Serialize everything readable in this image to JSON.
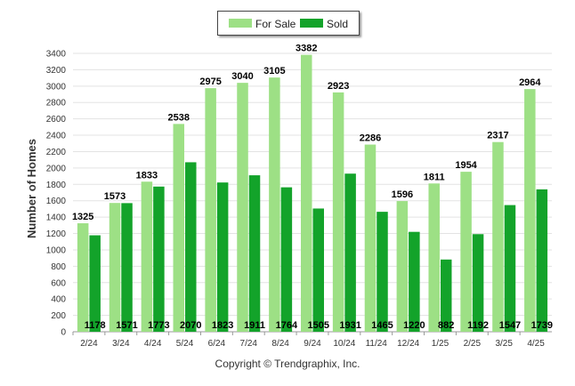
{
  "chart_data": {
    "type": "bar",
    "categories": [
      "2/24",
      "3/24",
      "4/24",
      "5/24",
      "6/24",
      "7/24",
      "8/24",
      "9/24",
      "10/24",
      "11/24",
      "12/24",
      "1/25",
      "2/25",
      "3/25",
      "4/25"
    ],
    "series": [
      {
        "name": "For Sale",
        "values": [
          1325,
          1573,
          1833,
          2538,
          2975,
          3040,
          3105,
          3382,
          2923,
          2286,
          1596,
          1811,
          1954,
          2317,
          2964
        ],
        "color": "#9de085"
      },
      {
        "name": "Sold",
        "values": [
          1178,
          1571,
          1773,
          2070,
          1823,
          1911,
          1764,
          1505,
          1931,
          1465,
          1220,
          882,
          1192,
          1547,
          1739
        ],
        "color": "#13a32a"
      }
    ],
    "ylabel": "Number of Homes",
    "ylim": [
      0,
      3400
    ],
    "yticks": [
      0,
      200,
      400,
      600,
      800,
      1000,
      1200,
      1400,
      1600,
      1800,
      2000,
      2200,
      2400,
      2600,
      2800,
      3000,
      3200,
      3400
    ],
    "legend_position": "top-center",
    "grid": true
  },
  "footer": {
    "copyright": "Copyright © Trendgraphix, Inc."
  }
}
